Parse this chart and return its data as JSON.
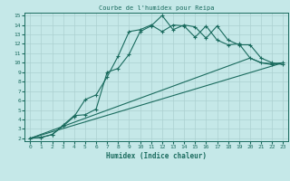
{
  "title": "Courbe de l'humidex pour Reipa",
  "xlabel": "Humidex (Indice chaleur)",
  "xlim": [
    -0.5,
    23.5
  ],
  "ylim": [
    1.7,
    15.3
  ],
  "xticks": [
    0,
    1,
    2,
    3,
    4,
    5,
    6,
    7,
    8,
    9,
    10,
    11,
    12,
    13,
    14,
    15,
    16,
    17,
    18,
    19,
    20,
    21,
    22,
    23
  ],
  "yticks": [
    2,
    3,
    4,
    5,
    6,
    7,
    8,
    9,
    10,
    11,
    12,
    13,
    14,
    15
  ],
  "bg_color": "#c5e8e8",
  "grid_color": "#acd0d0",
  "line_color": "#1a6b5e",
  "line1_x": [
    0,
    1,
    2,
    3,
    4,
    5,
    6,
    7,
    8,
    9,
    10,
    11,
    12,
    13,
    14,
    15,
    16,
    17,
    18,
    19,
    20,
    21,
    22,
    23
  ],
  "line1_y": [
    2.0,
    2.1,
    2.4,
    3.3,
    4.3,
    6.1,
    6.6,
    8.5,
    10.7,
    13.3,
    13.5,
    14.0,
    13.3,
    14.0,
    13.9,
    12.7,
    13.9,
    12.4,
    11.9,
    12.0,
    10.5,
    10.0,
    9.8,
    10.0
  ],
  "line2_x": [
    0,
    1,
    2,
    3,
    4,
    5,
    6,
    7,
    8,
    9,
    10,
    11,
    12,
    13,
    14,
    15,
    16,
    17,
    18,
    19,
    20,
    21,
    22,
    23
  ],
  "line2_y": [
    2.0,
    2.1,
    2.4,
    3.4,
    4.4,
    4.5,
    5.1,
    9.0,
    9.4,
    10.9,
    13.3,
    13.9,
    15.0,
    13.5,
    14.0,
    13.8,
    12.6,
    13.9,
    12.4,
    11.9,
    11.9,
    10.5,
    10.0,
    9.8
  ],
  "line3_x": [
    0,
    23
  ],
  "line3_y": [
    2.0,
    10.0
  ],
  "line4_x": [
    0,
    20,
    21,
    22,
    23
  ],
  "line4_y": [
    2.0,
    10.5,
    10.0,
    9.9,
    10.0
  ]
}
